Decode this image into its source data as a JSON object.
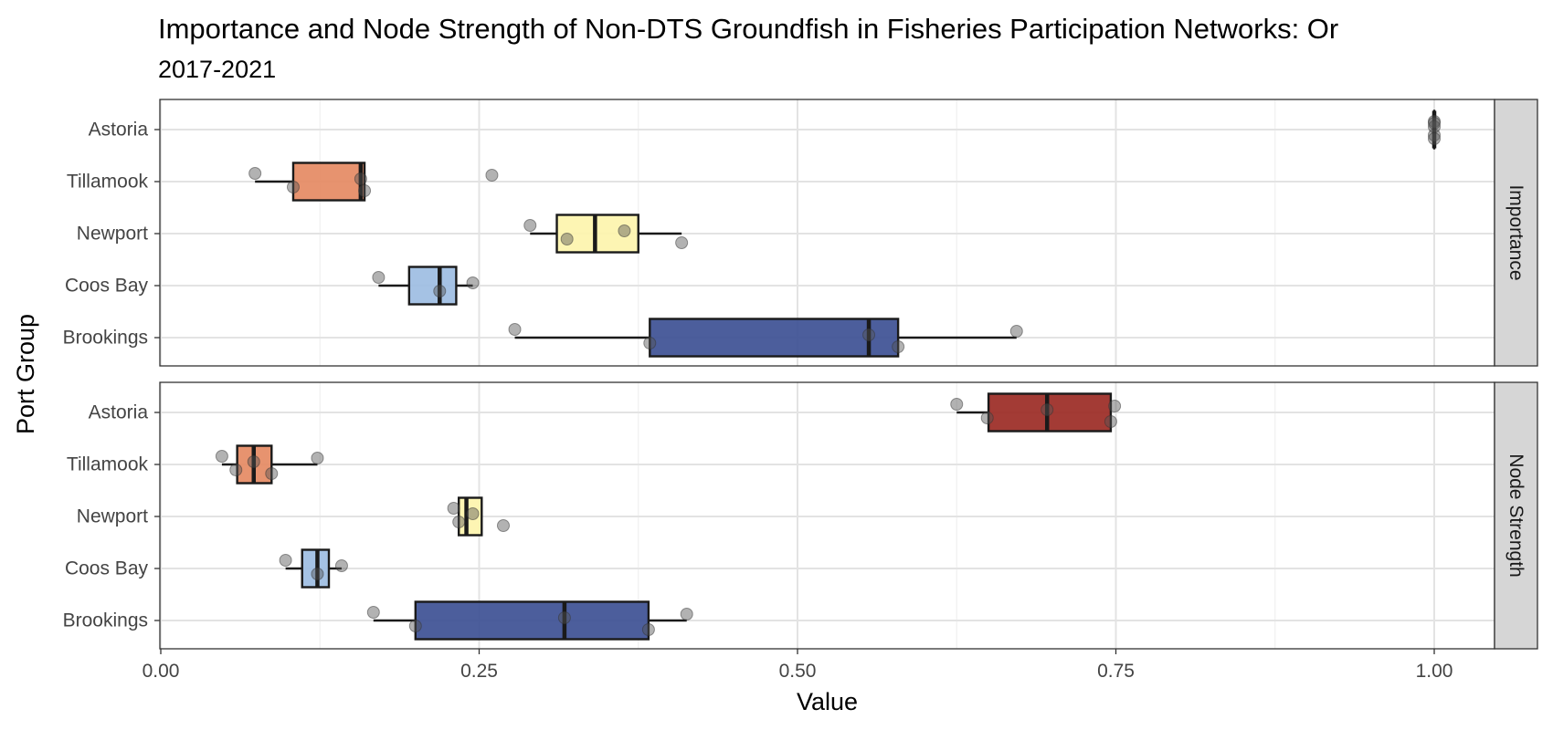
{
  "chart_data": {
    "type": "boxplot",
    "title": "Importance and Node Strength of Non-DTS Groundfish in Fisheries Participation Networks: Or",
    "subtitle": "2017-2021",
    "xlabel": "Value",
    "ylabel": "Port Group",
    "xlim": [
      0,
      1.08
    ],
    "x_ticks": [
      "0.00",
      "0.25",
      "0.50",
      "0.75",
      "1.00"
    ],
    "x_tick_values": [
      0,
      0.25,
      0.5,
      0.75,
      1.0
    ],
    "grid": true,
    "categories": [
      "Astoria",
      "Tillamook",
      "Newport",
      "Coos Bay",
      "Brookings"
    ],
    "panels": [
      {
        "facet": "Importance",
        "series": [
          {
            "port": "Astoria",
            "fill": "#9b2a24",
            "whisker_min": 1.0,
            "q1": 1.0,
            "median": 1.0,
            "q3": 1.0,
            "whisker_max": 1.0,
            "points": [
              1.0,
              1.0,
              1.0,
              1.0,
              1.0
            ]
          },
          {
            "port": "Tillamook",
            "fill": "#e58a63",
            "whisker_min": 0.074,
            "q1": 0.104,
            "median": 0.157,
            "q3": 0.16,
            "whisker_max": 0.16,
            "points": [
              0.074,
              0.104,
              0.157,
              0.16,
              0.26
            ]
          },
          {
            "port": "Newport",
            "fill": "#fdf4ad",
            "whisker_min": 0.29,
            "q1": 0.311,
            "median": 0.341,
            "q3": 0.375,
            "whisker_max": 0.409,
            "points": [
              0.29,
              0.319,
              0.364,
              0.409
            ]
          },
          {
            "port": "Coos Bay",
            "fill": "#9dbde2",
            "whisker_min": 0.171,
            "q1": 0.195,
            "median": 0.219,
            "q3": 0.232,
            "whisker_max": 0.245,
            "points": [
              0.171,
              0.219,
              0.245
            ]
          },
          {
            "port": "Brookings",
            "fill": "#3d5094",
            "whisker_min": 0.278,
            "q1": 0.384,
            "median": 0.556,
            "q3": 0.579,
            "whisker_max": 0.672,
            "points": [
              0.278,
              0.384,
              0.556,
              0.579,
              0.672
            ]
          }
        ]
      },
      {
        "facet": "Node Strength",
        "series": [
          {
            "port": "Astoria",
            "fill": "#9b2a24",
            "whisker_min": 0.625,
            "q1": 0.65,
            "median": 0.696,
            "q3": 0.746,
            "whisker_max": 0.746,
            "points": [
              0.625,
              0.649,
              0.696,
              0.746,
              0.749
            ]
          },
          {
            "port": "Tillamook",
            "fill": "#e58a63",
            "whisker_min": 0.048,
            "q1": 0.06,
            "median": 0.073,
            "q3": 0.087,
            "whisker_max": 0.123,
            "points": [
              0.048,
              0.059,
              0.073,
              0.087,
              0.123
            ]
          },
          {
            "port": "Newport",
            "fill": "#fdf4ad",
            "whisker_min": 0.234,
            "q1": 0.234,
            "median": 0.24,
            "q3": 0.252,
            "whisker_max": 0.252,
            "points": [
              0.23,
              0.234,
              0.245,
              0.269
            ]
          },
          {
            "port": "Coos Bay",
            "fill": "#9dbde2",
            "whisker_min": 0.098,
            "q1": 0.111,
            "median": 0.123,
            "q3": 0.132,
            "whisker_max": 0.142,
            "points": [
              0.098,
              0.123,
              0.142
            ]
          },
          {
            "port": "Brookings",
            "fill": "#3d5094",
            "whisker_min": 0.167,
            "q1": 0.2,
            "median": 0.317,
            "q3": 0.383,
            "whisker_max": 0.413,
            "points": [
              0.167,
              0.2,
              0.317,
              0.383,
              0.413
            ]
          }
        ]
      }
    ]
  }
}
